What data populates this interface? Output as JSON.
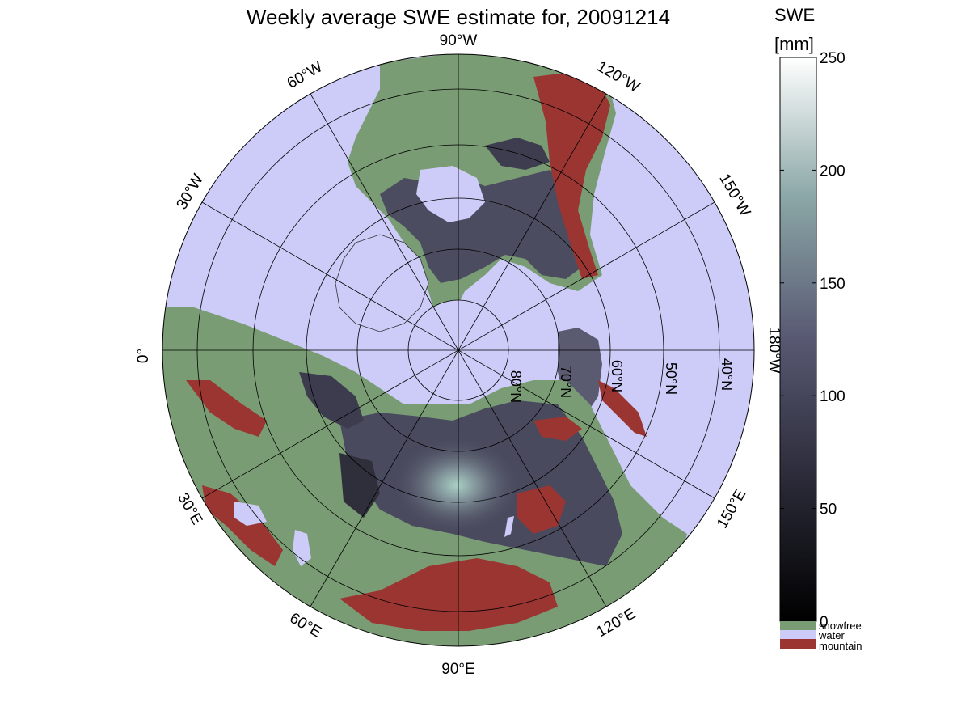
{
  "title": "Weekly average SWE estimate for, 20091214",
  "colorbar": {
    "label_line1": "SWE",
    "label_line2": "[mm]",
    "ticks": [
      {
        "value": 0,
        "label": "0"
      },
      {
        "value": 50,
        "label": "50"
      },
      {
        "value": 100,
        "label": "100"
      },
      {
        "value": 150,
        "label": "150"
      },
      {
        "value": 200,
        "label": "200"
      },
      {
        "value": 250,
        "label": "250"
      }
    ],
    "range": [
      0,
      250
    ],
    "colormap": "bone (black to white)"
  },
  "legend": [
    {
      "label": "snowfree",
      "color": "#7a9c74"
    },
    {
      "label": "water",
      "color": "#cdccf9"
    },
    {
      "label": "mountain",
      "color": "#9b3532"
    }
  ],
  "map": {
    "projection": "north polar stereographic",
    "longitude_labels": [
      "90°W",
      "60°W",
      "30°W",
      "0°",
      "30°E",
      "60°E",
      "90°E",
      "120°E",
      "150°E",
      "180°W",
      "150°W",
      "120°W"
    ],
    "latitude_labels": [
      "80°N",
      "70°N",
      "60°N",
      "50°N",
      "40°N"
    ],
    "colors": {
      "ocean": "#cdccf9",
      "snowfree": "#7a9c74",
      "mountain": "#9b3532",
      "swe_low": "#2b2b38",
      "swe_mid": "#55556f",
      "swe_high": "#9fc4bd"
    }
  }
}
